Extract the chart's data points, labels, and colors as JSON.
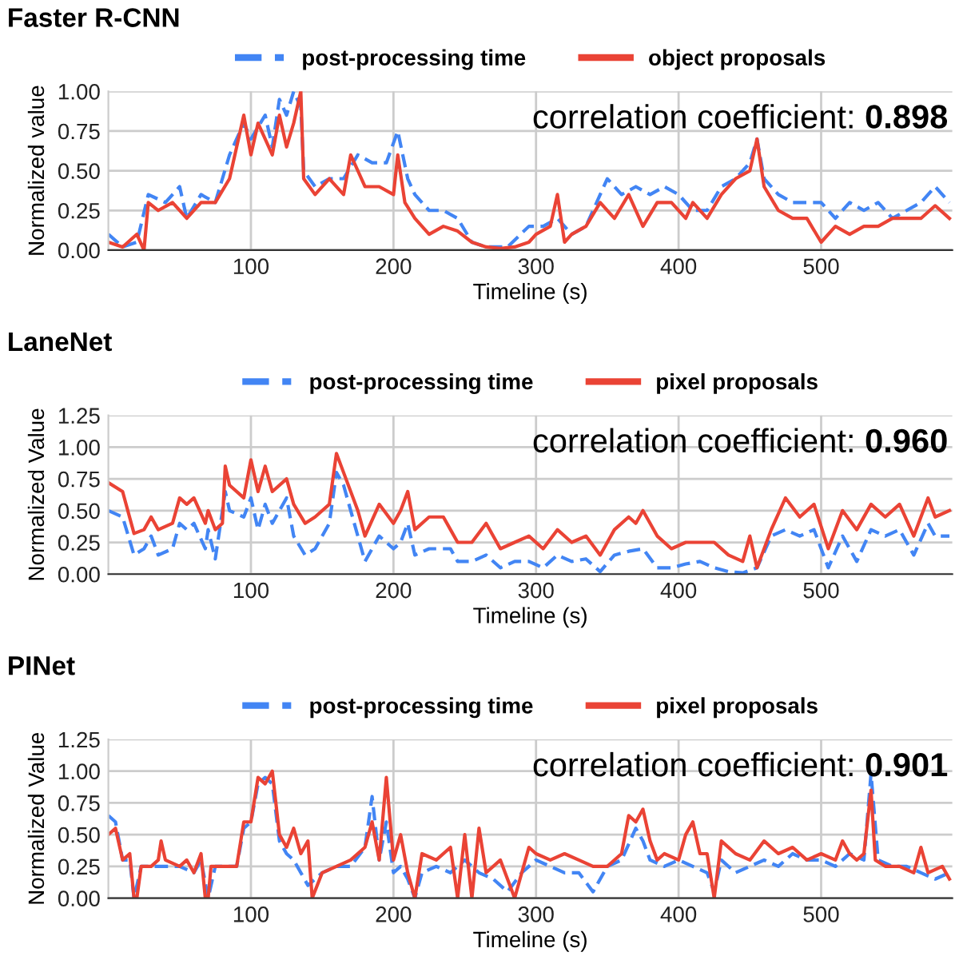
{
  "chart_data": [
    {
      "type": "line",
      "title": "Faster R-CNN",
      "xlabel": "Timeline (s)",
      "ylabel": "Normalized value",
      "xlim": [
        0,
        592
      ],
      "xticks": [
        100,
        200,
        300,
        400,
        500
      ],
      "ylim": [
        0,
        1
      ],
      "yticks": [
        {
          "value": 0,
          "label": "0.00"
        },
        {
          "value": 0.25,
          "label": "0.25"
        },
        {
          "value": 0.5,
          "label": "0.50"
        },
        {
          "value": 0.75,
          "label": "0.75"
        },
        {
          "value": 1,
          "label": "1.00"
        }
      ],
      "grid": true,
      "legend": "top",
      "annotations": [
        "correlation coefficient:",
        "0.898"
      ],
      "series": [
        {
          "name": "post-processing time",
          "color": "#4285f4",
          "line_style": "dashed",
          "x": [
            0,
            10,
            20,
            28,
            40,
            50,
            55,
            65,
            75,
            85,
            95,
            100,
            110,
            115,
            120,
            125,
            130,
            135,
            137,
            145,
            155,
            165,
            175,
            185,
            195,
            203,
            210,
            215,
            225,
            235,
            245,
            255,
            265,
            280,
            295,
            305,
            315,
            325,
            335,
            345,
            350,
            360,
            370,
            380,
            390,
            400,
            410,
            420,
            430,
            440,
            450,
            455,
            460,
            470,
            480,
            490,
            500,
            510,
            520,
            530,
            540,
            550,
            560,
            570,
            580,
            590
          ],
          "values": [
            0.1,
            0.02,
            0.05,
            0.35,
            0.3,
            0.4,
            0.2,
            0.35,
            0.3,
            0.6,
            0.8,
            0.7,
            0.85,
            0.65,
            0.95,
            0.85,
            1.0,
            0.9,
            0.5,
            0.4,
            0.45,
            0.45,
            0.6,
            0.55,
            0.55,
            0.75,
            0.45,
            0.35,
            0.25,
            0.25,
            0.2,
            0.05,
            0.02,
            0.02,
            0.15,
            0.15,
            0.2,
            0.1,
            0.15,
            0.35,
            0.45,
            0.35,
            0.4,
            0.35,
            0.4,
            0.35,
            0.25,
            0.25,
            0.4,
            0.45,
            0.55,
            0.7,
            0.45,
            0.35,
            0.3,
            0.3,
            0.3,
            0.2,
            0.3,
            0.25,
            0.3,
            0.2,
            0.25,
            0.3,
            0.4,
            0.3
          ]
        },
        {
          "name": "object proposals",
          "color": "#ea4335",
          "line_style": "solid",
          "x": [
            0,
            10,
            20,
            25,
            28,
            35,
            45,
            55,
            65,
            75,
            85,
            95,
            100,
            105,
            110,
            115,
            120,
            125,
            130,
            135,
            137,
            145,
            155,
            165,
            170,
            180,
            190,
            200,
            203,
            208,
            215,
            225,
            235,
            245,
            255,
            265,
            275,
            285,
            295,
            300,
            310,
            315,
            320,
            325,
            335,
            345,
            355,
            365,
            375,
            385,
            395,
            405,
            410,
            420,
            430,
            440,
            450,
            455,
            460,
            470,
            480,
            490,
            500,
            510,
            520,
            530,
            540,
            550,
            560,
            570,
            580,
            590
          ],
          "values": [
            0.05,
            0.02,
            0.1,
            0.0,
            0.3,
            0.25,
            0.3,
            0.2,
            0.3,
            0.3,
            0.45,
            0.85,
            0.6,
            0.8,
            0.7,
            0.6,
            0.85,
            0.65,
            0.8,
            1.0,
            0.45,
            0.35,
            0.45,
            0.35,
            0.6,
            0.4,
            0.4,
            0.35,
            0.6,
            0.3,
            0.2,
            0.1,
            0.15,
            0.12,
            0.05,
            0.02,
            0.01,
            0.02,
            0.05,
            0.1,
            0.15,
            0.35,
            0.05,
            0.1,
            0.15,
            0.3,
            0.2,
            0.35,
            0.15,
            0.3,
            0.3,
            0.2,
            0.3,
            0.2,
            0.35,
            0.45,
            0.5,
            0.7,
            0.4,
            0.25,
            0.2,
            0.2,
            0.05,
            0.15,
            0.1,
            0.15,
            0.15,
            0.2,
            0.2,
            0.2,
            0.28,
            0.2
          ]
        }
      ]
    },
    {
      "type": "line",
      "title": "LaneNet",
      "xlabel": "Timeline (s)",
      "ylabel": "Normalized Value",
      "xlim": [
        0,
        592
      ],
      "xticks": [
        100,
        200,
        300,
        400,
        500
      ],
      "ylim": [
        0,
        1.25
      ],
      "yticks": [
        {
          "value": 0,
          "label": "0.00"
        },
        {
          "value": 0.25,
          "label": "0.25"
        },
        {
          "value": 0.5,
          "label": "0.50"
        },
        {
          "value": 0.75,
          "label": "0.75"
        },
        {
          "value": 1,
          "label": "1.00"
        },
        {
          "value": 1.25,
          "label": "1.25"
        }
      ],
      "grid": true,
      "legend": "top",
      "annotations": [
        "correlation coefficient:",
        "0.960"
      ],
      "series": [
        {
          "name": "post-processing time",
          "color": "#4285f4",
          "line_style": "dashed",
          "x": [
            0,
            10,
            18,
            25,
            30,
            35,
            45,
            50,
            55,
            60,
            68,
            70,
            75,
            82,
            85,
            95,
            100,
            105,
            110,
            115,
            125,
            130,
            138,
            145,
            155,
            160,
            165,
            175,
            180,
            190,
            200,
            205,
            210,
            215,
            225,
            235,
            240,
            245,
            255,
            265,
            275,
            285,
            295,
            305,
            315,
            325,
            335,
            345,
            355,
            365,
            375,
            385,
            395,
            405,
            415,
            425,
            435,
            445,
            455,
            465,
            475,
            485,
            495,
            505,
            515,
            525,
            535,
            545,
            555,
            565,
            575,
            580,
            590
          ],
          "values": [
            0.5,
            0.45,
            0.15,
            0.2,
            0.3,
            0.15,
            0.2,
            0.4,
            0.35,
            0.4,
            0.2,
            0.35,
            0.12,
            0.65,
            0.5,
            0.45,
            0.6,
            0.35,
            0.55,
            0.4,
            0.6,
            0.3,
            0.15,
            0.2,
            0.4,
            0.8,
            0.7,
            0.3,
            0.1,
            0.3,
            0.2,
            0.25,
            0.4,
            0.15,
            0.2,
            0.2,
            0.2,
            0.1,
            0.1,
            0.15,
            0.05,
            0.1,
            0.1,
            0.05,
            0.15,
            0.1,
            0.12,
            0.02,
            0.15,
            0.18,
            0.2,
            0.05,
            0.05,
            0.08,
            0.1,
            0.05,
            0.02,
            0.01,
            0.05,
            0.3,
            0.35,
            0.3,
            0.35,
            0.05,
            0.3,
            0.1,
            0.35,
            0.3,
            0.35,
            0.15,
            0.4,
            0.3,
            0.3
          ]
        },
        {
          "name": "pixel proposals",
          "color": "#ea4335",
          "line_style": "solid",
          "x": [
            0,
            10,
            18,
            25,
            30,
            35,
            45,
            50,
            55,
            60,
            68,
            70,
            75,
            80,
            82,
            85,
            95,
            100,
            105,
            110,
            115,
            125,
            130,
            138,
            145,
            155,
            160,
            165,
            175,
            180,
            190,
            200,
            205,
            210,
            215,
            225,
            235,
            240,
            245,
            255,
            265,
            275,
            285,
            295,
            305,
            315,
            325,
            335,
            345,
            355,
            365,
            370,
            375,
            385,
            395,
            405,
            415,
            425,
            435,
            445,
            450,
            455,
            465,
            475,
            485,
            495,
            505,
            515,
            525,
            535,
            545,
            555,
            565,
            575,
            580,
            590
          ],
          "values": [
            0.72,
            0.65,
            0.32,
            0.35,
            0.45,
            0.35,
            0.4,
            0.6,
            0.55,
            0.6,
            0.4,
            0.5,
            0.35,
            0.4,
            0.85,
            0.7,
            0.6,
            0.9,
            0.65,
            0.85,
            0.65,
            0.75,
            0.55,
            0.4,
            0.45,
            0.55,
            0.95,
            0.8,
            0.5,
            0.3,
            0.55,
            0.4,
            0.5,
            0.65,
            0.35,
            0.45,
            0.45,
            0.35,
            0.25,
            0.25,
            0.4,
            0.2,
            0.25,
            0.3,
            0.2,
            0.35,
            0.25,
            0.3,
            0.15,
            0.35,
            0.45,
            0.4,
            0.5,
            0.3,
            0.2,
            0.25,
            0.25,
            0.25,
            0.15,
            0.1,
            0.3,
            0.05,
            0.35,
            0.6,
            0.45,
            0.55,
            0.2,
            0.5,
            0.35,
            0.55,
            0.45,
            0.55,
            0.3,
            0.6,
            0.45,
            0.5
          ]
        }
      ]
    },
    {
      "type": "line",
      "title": "PINet",
      "xlabel": "Timeline (s)",
      "ylabel": "Normalized Value",
      "xlim": [
        0,
        592
      ],
      "xticks": [
        100,
        200,
        300,
        400,
        500
      ],
      "ylim": [
        0,
        1.25
      ],
      "yticks": [
        {
          "value": 0,
          "label": "0.00"
        },
        {
          "value": 0.25,
          "label": "0.25"
        },
        {
          "value": 0.5,
          "label": "0.50"
        },
        {
          "value": 0.75,
          "label": "0.75"
        },
        {
          "value": 1,
          "label": "1.00"
        },
        {
          "value": 1.25,
          "label": "1.25"
        }
      ],
      "grid": true,
      "legend": "top",
      "annotations": [
        "correlation coefficient:",
        "0.901"
      ],
      "series": [
        {
          "name": "post-processing time",
          "color": "#4285f4",
          "line_style": "dashed",
          "x": [
            0,
            5,
            10,
            15,
            18,
            23,
            35,
            50,
            60,
            65,
            70,
            75,
            90,
            95,
            100,
            105,
            110,
            115,
            120,
            125,
            130,
            135,
            140,
            150,
            160,
            170,
            180,
            185,
            190,
            195,
            200,
            205,
            210,
            215,
            220,
            230,
            240,
            250,
            260,
            270,
            280,
            290,
            300,
            310,
            320,
            330,
            340,
            350,
            360,
            370,
            375,
            380,
            390,
            400,
            410,
            420,
            425,
            430,
            440,
            450,
            460,
            470,
            480,
            490,
            500,
            510,
            520,
            530,
            535,
            540,
            550,
            560,
            570,
            580,
            590
          ],
          "values": [
            0.65,
            0.6,
            0.3,
            0.3,
            0.0,
            0.25,
            0.25,
            0.25,
            0.2,
            0.3,
            0.0,
            0.25,
            0.25,
            0.55,
            0.6,
            0.9,
            0.95,
            0.9,
            0.45,
            0.35,
            0.3,
            0.2,
            0.1,
            0.2,
            0.25,
            0.25,
            0.4,
            0.8,
            0.3,
            0.6,
            0.2,
            0.25,
            0.15,
            0.0,
            0.2,
            0.25,
            0.2,
            0.3,
            0.2,
            0.15,
            0.05,
            0.2,
            0.3,
            0.25,
            0.2,
            0.2,
            0.05,
            0.25,
            0.3,
            0.55,
            0.45,
            0.3,
            0.25,
            0.3,
            0.25,
            0.2,
            0.05,
            0.3,
            0.2,
            0.25,
            0.3,
            0.25,
            0.35,
            0.3,
            0.3,
            0.25,
            0.35,
            0.3,
            0.98,
            0.3,
            0.25,
            0.25,
            0.2,
            0.15,
            0.2
          ]
        },
        {
          "name": "pixel proposals",
          "color": "#ea4335",
          "line_style": "solid",
          "x": [
            0,
            5,
            10,
            15,
            18,
            20,
            23,
            30,
            35,
            37,
            40,
            50,
            55,
            60,
            65,
            68,
            70,
            72,
            80,
            90,
            95,
            100,
            105,
            110,
            115,
            120,
            125,
            130,
            135,
            140,
            143,
            150,
            160,
            170,
            180,
            185,
            190,
            195,
            200,
            205,
            210,
            215,
            220,
            230,
            240,
            245,
            250,
            255,
            260,
            265,
            275,
            285,
            295,
            300,
            310,
            320,
            330,
            340,
            350,
            360,
            365,
            370,
            375,
            380,
            385,
            390,
            400,
            405,
            410,
            415,
            420,
            425,
            430,
            440,
            450,
            460,
            470,
            480,
            490,
            500,
            510,
            515,
            520,
            525,
            530,
            535,
            538,
            545,
            555,
            565,
            570,
            575,
            585,
            590
          ],
          "values": [
            0.5,
            0.55,
            0.3,
            0.35,
            0.0,
            0.0,
            0.25,
            0.25,
            0.3,
            0.45,
            0.3,
            0.25,
            0.3,
            0.2,
            0.35,
            0.0,
            0.0,
            0.25,
            0.25,
            0.25,
            0.6,
            0.6,
            0.95,
            0.9,
            1.0,
            0.5,
            0.4,
            0.55,
            0.35,
            0.45,
            0.0,
            0.2,
            0.25,
            0.3,
            0.4,
            0.6,
            0.3,
            0.95,
            0.3,
            0.5,
            0.2,
            0.0,
            0.35,
            0.3,
            0.4,
            0.0,
            0.5,
            0.0,
            0.55,
            0.2,
            0.3,
            0.0,
            0.4,
            0.35,
            0.3,
            0.35,
            0.3,
            0.25,
            0.25,
            0.35,
            0.65,
            0.6,
            0.7,
            0.45,
            0.3,
            0.35,
            0.3,
            0.5,
            0.6,
            0.35,
            0.35,
            0.0,
            0.45,
            0.35,
            0.3,
            0.45,
            0.35,
            0.4,
            0.3,
            0.35,
            0.3,
            0.45,
            0.35,
            0.3,
            0.35,
            0.85,
            0.3,
            0.25,
            0.25,
            0.2,
            0.4,
            0.2,
            0.25,
            0.15
          ]
        }
      ]
    }
  ]
}
